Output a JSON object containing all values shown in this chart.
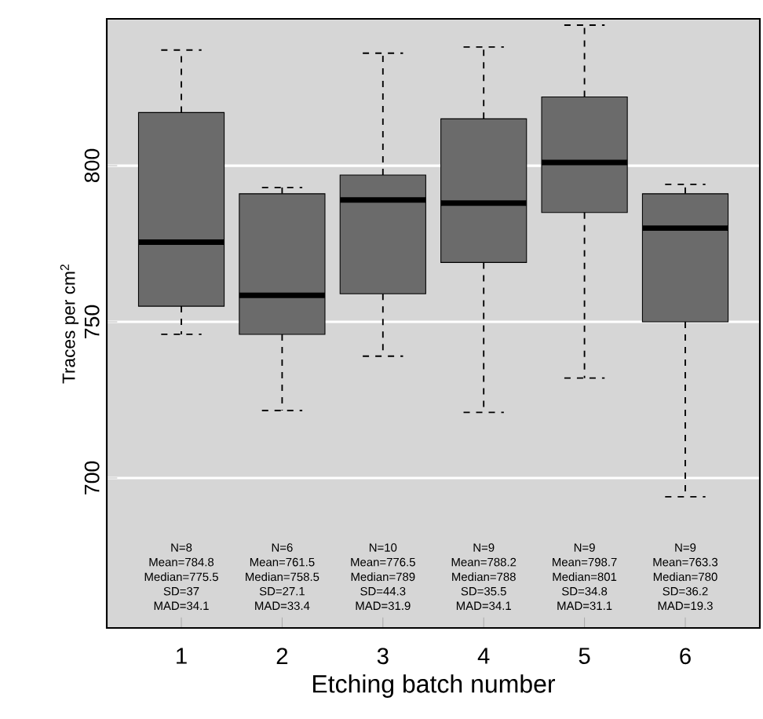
{
  "chart_data": {
    "type": "box",
    "xlabel": "Etching batch number",
    "ylabel": "Traces per cm$^{2}$",
    "categories": [
      "1",
      "2",
      "3",
      "4",
      "5",
      "6"
    ],
    "boxes": [
      {
        "low": 746,
        "q1": 755,
        "median": 775.5,
        "q3": 817,
        "high": 837
      },
      {
        "low": 721.6,
        "q1": 746,
        "median": 758.5,
        "q3": 791,
        "high": 793
      },
      {
        "low": 739,
        "q1": 759,
        "median": 789,
        "q3": 797,
        "high": 836
      },
      {
        "low": 721,
        "q1": 769,
        "median": 788,
        "q3": 815,
        "high": 838
      },
      {
        "low": 732,
        "q1": 785,
        "median": 801,
        "q3": 822,
        "high": 845
      },
      {
        "low": 694,
        "q1": 750,
        "median": 780,
        "q3": 791,
        "high": 794
      }
    ],
    "color": "#6b6b6b",
    "ylim": [
      652,
      847
    ],
    "yticks": [
      700,
      750,
      800
    ],
    "grid": "y",
    "annotations": [
      "N=8",
      "Mean=784.8",
      "Median=775.5",
      "SD=37",
      "MAD=34.1",
      "N=6",
      "Mean=761.5",
      "Median=758.5",
      "SD=27.1",
      "MAD=33.4",
      "N=10",
      "Mean=776.5",
      "Median=789",
      "SD=44.3",
      "MAD=31.9",
      "N=9",
      "Mean=788.2",
      "Median=788",
      "SD=35.5",
      "MAD=34.1",
      "N=9",
      "Mean=798.7",
      "Median=801",
      "SD=34.8",
      "MAD=31.1",
      "N=9",
      "Mean=763.3",
      "Median=780",
      "SD=36.2",
      "MAD=19.3"
    ]
  }
}
